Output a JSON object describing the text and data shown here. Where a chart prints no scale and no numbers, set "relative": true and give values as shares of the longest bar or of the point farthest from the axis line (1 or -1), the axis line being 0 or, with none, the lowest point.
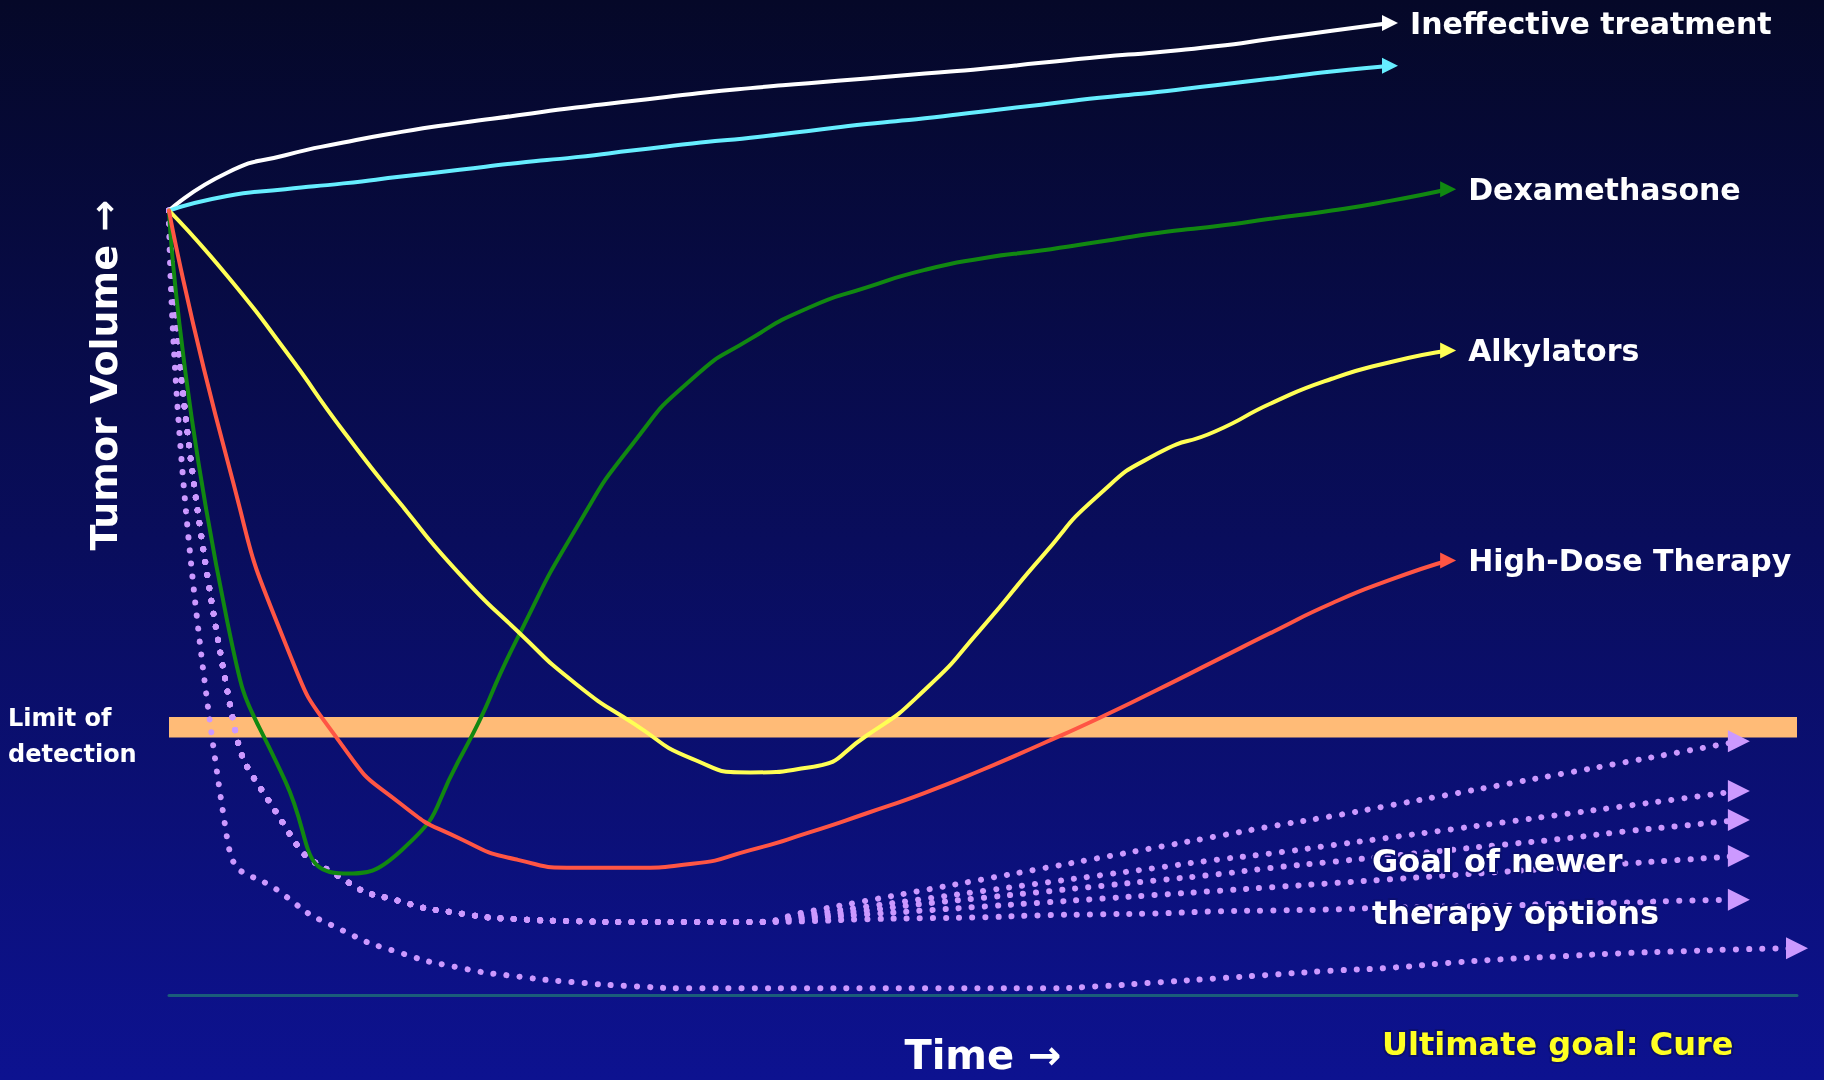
{
  "chart_data": {
    "type": "line",
    "relative": true,
    "xlabel": "Time →",
    "ylabel": "Tumor Volume →",
    "grid": false,
    "legend": false,
    "marker": "none",
    "categories": [
      null,
      null,
      null,
      null,
      null,
      null,
      null,
      null,
      null,
      null,
      null,
      null,
      null,
      null,
      null,
      null,
      null,
      null,
      null,
      null,
      null,
      null,
      null,
      null,
      null,
      null,
      null,
      null,
      null
    ],
    "series": [
      {
        "name": "Ineffective treatment",
        "color": "#ffffff",
        "values": [
          0.807,
          0.846,
          0.864,
          0.877,
          0.888,
          0.897,
          0.905,
          0.913,
          0.92,
          0.927,
          0.933,
          0.938,
          0.943,
          0.948,
          0.953,
          0.959,
          0.965,
          0.97,
          0.976,
          0.984,
          0.992,
          1.0,
          null,
          null,
          null,
          null,
          null,
          null,
          null
        ]
      },
      {
        "color": "#66eeff",
        "values": [
          0.807,
          0.822,
          0.829,
          0.835,
          0.842,
          0.849,
          0.856,
          0.862,
          0.869,
          0.876,
          0.882,
          0.889,
          0.896,
          0.902,
          0.909,
          0.916,
          0.923,
          0.929,
          0.936,
          0.943,
          0.95,
          0.956,
          null,
          null,
          null,
          null,
          null,
          null,
          null
        ]
      },
      {
        "name": "Dexamethasone",
        "color": "#118811",
        "values": [
          0.807,
          0.385,
          0.22,
          0.125,
          0.149,
          0.243,
          0.368,
          0.48,
          0.569,
          0.634,
          0.675,
          0.707,
          0.728,
          0.746,
          0.758,
          0.766,
          0.775,
          0.784,
          0.791,
          0.799,
          0.807,
          0.817,
          0.829,
          null,
          null,
          null,
          null,
          null,
          null
        ]
      },
      {
        "name": "Alkylators",
        "color": "#ffff55",
        "values": [
          0.807,
          0.74,
          0.663,
          0.58,
          0.504,
          0.433,
          0.374,
          0.32,
          0.279,
          0.243,
          0.229,
          0.234,
          0.267,
          0.314,
          0.379,
          0.45,
          0.515,
          0.557,
          0.58,
          0.61,
          0.634,
          0.651,
          0.663,
          null,
          null,
          null,
          null,
          null,
          null
        ]
      },
      {
        "name": "High-Dose Therapy",
        "color": "#ff5544",
        "values": [
          0.807,
          0.551,
          0.362,
          0.255,
          0.196,
          0.161,
          0.139,
          0.131,
          0.131,
          0.135,
          0.149,
          0.167,
          0.187,
          0.208,
          0.232,
          0.258,
          0.285,
          0.314,
          0.344,
          0.374,
          0.403,
          0.427,
          0.447,
          null,
          null,
          null,
          null,
          null,
          null
        ]
      },
      {
        "color": "#cc99ff",
        "line_style": "dotted",
        "values": [
          0.807,
          0.314,
          0.173,
          0.119,
          0.096,
          0.084,
          0.078,
          0.076,
          0.075,
          0.075,
          0.075,
          0.086,
          0.097,
          0.108,
          0.119,
          0.13,
          0.141,
          0.152,
          0.163,
          0.174,
          0.184,
          0.195,
          0.206,
          0.217,
          0.228,
          0.239,
          0.25,
          0.261,
          null
        ]
      },
      {
        "color": "#cc99ff",
        "line_style": "dotted",
        "values": [
          0.807,
          0.314,
          0.173,
          0.119,
          0.096,
          0.084,
          0.078,
          0.076,
          0.075,
          0.075,
          0.075,
          0.083,
          0.091,
          0.099,
          0.107,
          0.115,
          0.123,
          0.131,
          0.139,
          0.146,
          0.154,
          0.162,
          0.17,
          0.178,
          0.186,
          0.194,
          0.202,
          0.21,
          null
        ]
      },
      {
        "color": "#cc99ff",
        "line_style": "dotted",
        "values": [
          0.807,
          0.314,
          0.173,
          0.119,
          0.096,
          0.084,
          0.078,
          0.076,
          0.075,
          0.075,
          0.075,
          0.081,
          0.087,
          0.094,
          0.1,
          0.106,
          0.112,
          0.118,
          0.124,
          0.131,
          0.137,
          0.143,
          0.149,
          0.155,
          0.161,
          0.168,
          0.174,
          0.18,
          null
        ]
      },
      {
        "color": "#cc99ff",
        "line_style": "dotted",
        "values": [
          0.807,
          0.314,
          0.173,
          0.119,
          0.096,
          0.084,
          0.078,
          0.076,
          0.075,
          0.075,
          0.075,
          0.079,
          0.083,
          0.087,
          0.091,
          0.095,
          0.099,
          0.103,
          0.107,
          0.111,
          0.115,
          0.119,
          0.123,
          0.127,
          0.131,
          0.135,
          0.139,
          0.143,
          null
        ]
      },
      {
        "color": "#cc99ff",
        "line_style": "dotted",
        "values": [
          0.807,
          0.314,
          0.173,
          0.119,
          0.096,
          0.084,
          0.078,
          0.076,
          0.075,
          0.075,
          0.075,
          0.076,
          0.078,
          0.079,
          0.08,
          0.082,
          0.083,
          0.084,
          0.086,
          0.087,
          0.088,
          0.09,
          0.091,
          0.092,
          0.094,
          0.095,
          0.097,
          0.098,
          null
        ]
      },
      {
        "color": "#cc99ff",
        "line_style": "dotted",
        "values": [
          0.807,
          0.161,
          0.102,
          0.066,
          0.043,
          0.028,
          0.019,
          0.013,
          0.009,
          0.007,
          0.007,
          0.007,
          0.007,
          0.007,
          0.007,
          0.007,
          0.009,
          0.013,
          0.017,
          0.021,
          0.025,
          0.028,
          0.033,
          0.037,
          0.04,
          0.043,
          0.045,
          0.047,
          0.048
        ]
      }
    ],
    "bands": [
      {
        "axis": "y",
        "from": 0.265,
        "to": 0.286,
        "label": "Limit of detection",
        "color": "#ffbb77"
      }
    ],
    "annotations": [
      "Goal of newer therapy options",
      "Ultimate goal: Cure"
    ]
  }
}
